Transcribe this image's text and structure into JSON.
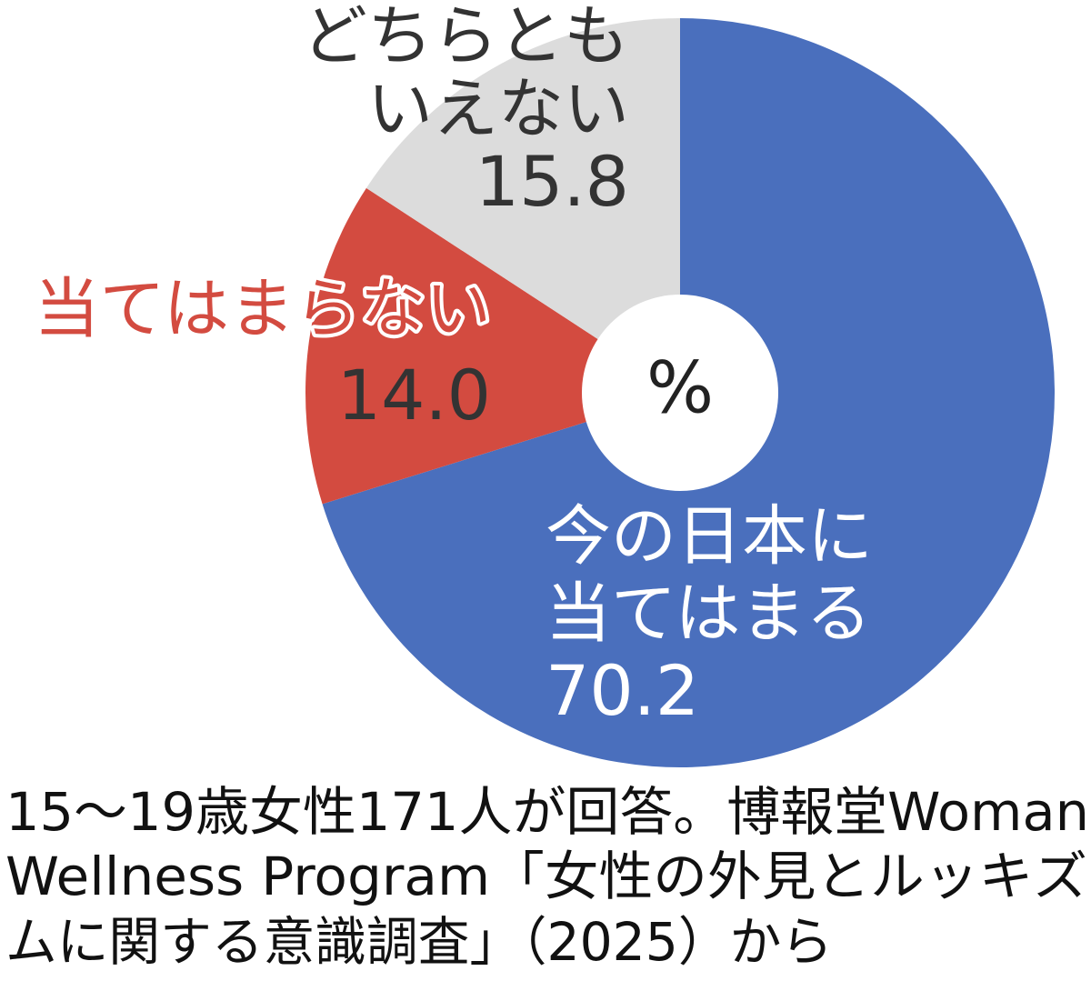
{
  "chart_data": {
    "type": "pie",
    "categories": [
      [
        "今の日本に",
        "当てはまる"
      ],
      [
        "当てはまらない"
      ],
      [
        "どちらとも",
        "いえない"
      ]
    ],
    "values": [
      70.2,
      14.0,
      15.8
    ],
    "value_labels": [
      "70.2",
      "14.0",
      "15.8"
    ],
    "colors": [
      "#4a6fbd",
      "#d34b40",
      "#dcdcdc"
    ],
    "center_label": "%",
    "note": [
      "15〜19歳女性171人が回答。博報堂Woman",
      "Wellness Program「女性の外見とルッキズ",
      "ムに関する意識調査」（2025）から"
    ]
  }
}
